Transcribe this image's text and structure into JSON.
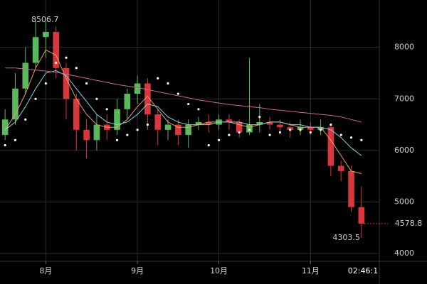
{
  "chart_data": {
    "type": "candlestick",
    "categories": [
      null,
      null,
      null,
      null,
      "8月",
      null,
      null,
      null,
      null,
      null,
      null,
      null,
      null,
      "9月",
      null,
      null,
      null,
      null,
      null,
      null,
      null,
      "10月",
      null,
      null,
      null,
      null,
      null,
      null,
      null,
      null,
      "11月",
      null,
      null,
      null,
      null,
      null
    ],
    "open": [
      6300,
      6600,
      7200,
      7700,
      8200,
      8300,
      7600,
      7000,
      6400,
      6200,
      6500,
      6400,
      6800,
      7100,
      7300,
      6700,
      6400,
      6500,
      6300,
      6500,
      6550,
      6500,
      6600,
      6550,
      6350,
      6500,
      6550,
      6500,
      6450,
      6400,
      6450,
      6400,
      6450,
      5700,
      5600,
      4900
    ],
    "high": [
      6800,
      7500,
      8000,
      8506.7,
      8500,
      8400,
      7700,
      7100,
      6600,
      6700,
      6700,
      7000,
      7200,
      7450,
      7400,
      6800,
      6600,
      6600,
      6600,
      6650,
      6700,
      6700,
      6700,
      6600,
      7800,
      6900,
      6650,
      6600,
      6550,
      6600,
      6550,
      6600,
      6500,
      5800,
      5700,
      5300
    ],
    "low": [
      6200,
      6500,
      7100,
      7600,
      7800,
      7400,
      6600,
      6000,
      5850,
      6000,
      6200,
      6300,
      6600,
      6900,
      6400,
      6100,
      6200,
      6100,
      6050,
      6400,
      6350,
      6400,
      6400,
      6250,
      6300,
      6350,
      6400,
      6350,
      6250,
      6300,
      6300,
      6300,
      5500,
      5400,
      4800,
      4303.5
    ],
    "close": [
      6600,
      7200,
      7700,
      8200,
      8300,
      7600,
      7000,
      6400,
      6200,
      6500,
      6400,
      6800,
      7100,
      7300,
      6700,
      6400,
      6500,
      6300,
      6500,
      6550,
      6500,
      6600,
      6550,
      6350,
      6500,
      6550,
      6500,
      6450,
      6400,
      6450,
      6400,
      6450,
      5700,
      5600,
      4900,
      4578.8
    ],
    "up_color": "#5cb85c",
    "down_color": "#d9363e",
    "series": [
      {
        "color": "#e8a15a",
        "style": "line",
        "values": [
          6400,
          6700,
          7100,
          7600,
          7950,
          7850,
          7400,
          7000,
          6700,
          6500,
          6450,
          6450,
          6600,
          6850,
          7050,
          6800,
          6550,
          6450,
          6450,
          6500,
          6550,
          6550,
          6550,
          6500,
          6450,
          6500,
          6550,
          6550,
          6500,
          6450,
          6450,
          6450,
          6200,
          5900,
          5600,
          5550
        ]
      },
      {
        "color": "#7fd3e6",
        "style": "line",
        "values": [
          6400,
          6550,
          6850,
          7200,
          7500,
          7550,
          7450,
          7200,
          6950,
          6700,
          6550,
          6500,
          6550,
          6700,
          6900,
          6850,
          6650,
          6550,
          6500,
          6500,
          6500,
          6550,
          6550,
          6550,
          6500,
          6500,
          6550,
          6550,
          6500,
          6500,
          6450,
          6450,
          6400,
          6250,
          6050,
          5900
        ]
      },
      {
        "color": "#c96a8c",
        "style": "line",
        "values": [
          7600,
          7600,
          7580,
          7560,
          7540,
          7520,
          7480,
          7440,
          7400,
          7360,
          7320,
          7280,
          7250,
          7220,
          7180,
          7140,
          7100,
          7060,
          7020,
          6980,
          6950,
          6920,
          6890,
          6870,
          6850,
          6830,
          6800,
          6780,
          6760,
          6740,
          6720,
          6700,
          6680,
          6650,
          6600,
          6550
        ]
      },
      {
        "color": "#ffffff",
        "style": "dots",
        "values": [
          6100,
          6200,
          6600,
          7000,
          7300,
          7700,
          7800,
          7600,
          7300,
          7000,
          6800,
          6200,
          6300,
          6400,
          6500,
          7400,
          7300,
          7100,
          6900,
          6800,
          6100,
          6200,
          6300,
          6350,
          6400,
          6650,
          6300,
          6350,
          6400,
          6400,
          6350,
          6400,
          6500,
          6300,
          6250,
          6200
        ]
      }
    ],
    "ylim": [
      3820,
      8920
    ],
    "yticks": [
      4000,
      5000,
      6000,
      7000,
      8000
    ],
    "grid": true,
    "countdown_label": "02:46:1"
  }
}
